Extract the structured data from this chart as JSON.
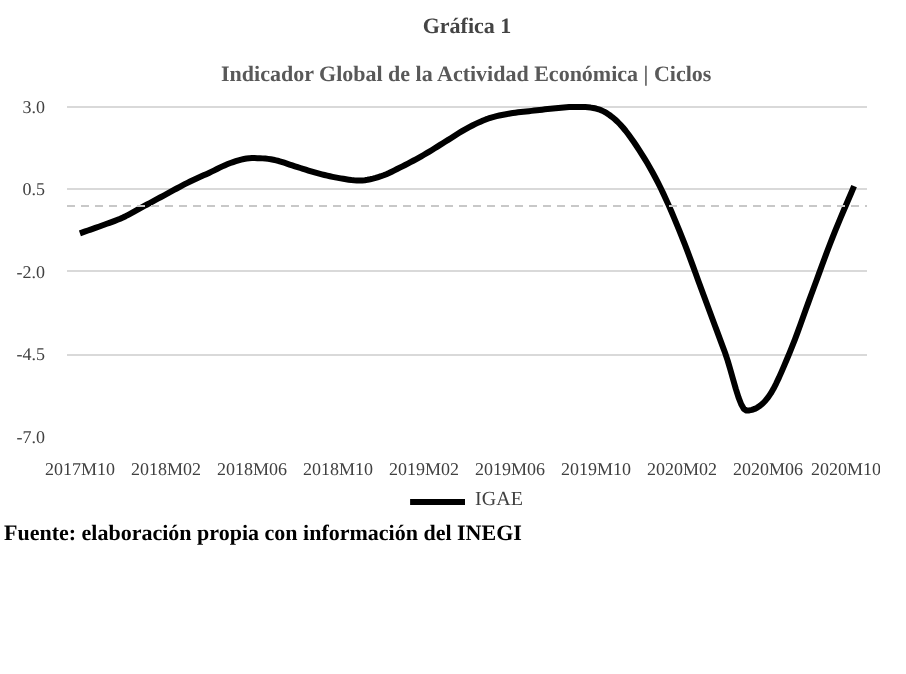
{
  "chart_data": {
    "type": "line",
    "title": "Indicador Global de la Actividad Económica | Ciclos",
    "subtitle": "Gráfica 1",
    "categories": [
      "2017M10",
      null,
      null,
      null,
      "2018M02",
      null,
      null,
      null,
      "2018M06",
      null,
      null,
      null,
      "2018M10",
      null,
      null,
      null,
      "2019M02",
      null,
      null,
      null,
      "2019M06",
      null,
      null,
      null,
      "2019M10",
      null,
      null,
      null,
      "2020M02",
      null,
      null,
      null,
      "2020M06",
      null,
      null,
      null,
      "2020M10"
    ],
    "series": [
      {
        "name": "IGAE",
        "color": "#000000",
        "values": [
          -0.83,
          -0.6,
          -0.35,
          0.0,
          0.35,
          0.7,
          1.0,
          1.3,
          1.45,
          1.4,
          1.2,
          1.0,
          0.85,
          0.77,
          0.9,
          1.2,
          1.55,
          1.95,
          2.35,
          2.65,
          2.8,
          2.88,
          2.95,
          3.0,
          2.95,
          2.55,
          1.7,
          0.55,
          -0.95,
          -2.7,
          -4.45,
          -6.2,
          -5.8,
          -4.45,
          -2.7,
          -0.95,
          0.6
        ]
      }
    ],
    "ylim": [
      -7.0,
      3.0
    ],
    "yticks": [
      {
        "value": -7,
        "label": "-7.0"
      },
      {
        "value": -4.5,
        "label": "-4.5"
      },
      {
        "value": -2,
        "label": "-2.0"
      },
      {
        "value": 0.5,
        "label": "0.5"
      },
      {
        "value": 3,
        "label": "3.0"
      }
    ],
    "ref_lines": [
      {
        "axis": "y",
        "value": 0,
        "label": null,
        "color": "#c8c8c8",
        "line_style": "dashed"
      }
    ],
    "grid": "y",
    "legend": "bottom",
    "marker": "none",
    "line_style": "solid",
    "annotations": [
      "Fuente: elaboración propia con información del INEGI"
    ]
  }
}
